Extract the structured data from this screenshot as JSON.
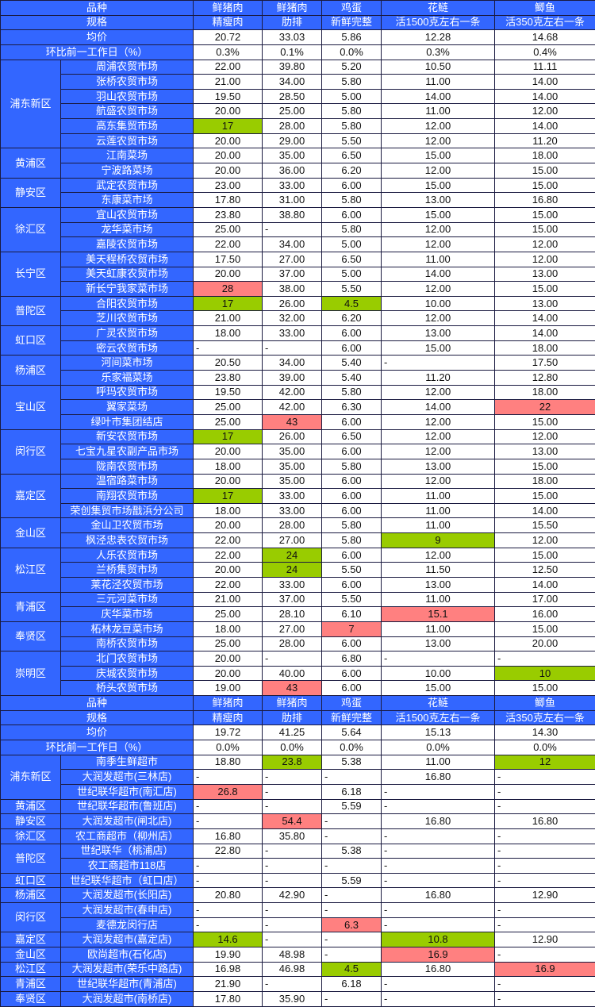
{
  "colors": {
    "header": "#3366ff",
    "low_highlight": "#99cc00",
    "high_highlight": "#ff8080"
  },
  "sections": [
    {
      "variety_label": "品种",
      "spec_label": "规格",
      "products": [
        "鲜猪肉",
        "鲜猪肉",
        "鸡蛋",
        "花鲢",
        "鲫鱼"
      ],
      "specs": [
        "精瘦肉",
        "肋排",
        "新鲜完整",
        "活1500克左右一条",
        "活350克左右一条"
      ],
      "avg_label": "均价",
      "avg": [
        "20.72",
        "33.03",
        "5.86",
        "12.28",
        "14.68"
      ],
      "change_label": "环比前一工作日（%）",
      "change": [
        "0.3%",
        "0.1%",
        "0.0%",
        "0.3%",
        "0.4%"
      ],
      "groups": [
        {
          "district": "浦东新区",
          "markets": [
            {
              "name": "周浦农贸市场",
              "prices": [
                "22.00",
                "39.80",
                "5.20",
                "10.50",
                "11.11"
              ]
            },
            {
              "name": "张桥农贸市场",
              "prices": [
                "21.00",
                "34.00",
                "5.80",
                "11.00",
                "14.00"
              ]
            },
            {
              "name": "羽山农贸市场",
              "prices": [
                "19.50",
                "28.50",
                "5.00",
                "14.00",
                "14.00"
              ]
            },
            {
              "name": "航盛农贸市场",
              "prices": [
                "20.00",
                "25.00",
                "5.80",
                "11.00",
                "12.00"
              ]
            },
            {
              "name": "高东集贸市场",
              "prices": [
                "17",
                "28.00",
                "5.80",
                "12.00",
                "14.00"
              ],
              "hl": {
                "0": "low"
              }
            },
            {
              "name": "云莲农贸市场",
              "prices": [
                "20.00",
                "29.00",
                "5.50",
                "12.00",
                "11.20"
              ]
            }
          ]
        },
        {
          "district": "黄浦区",
          "markets": [
            {
              "name": "江南菜场",
              "prices": [
                "20.00",
                "35.00",
                "6.50",
                "15.00",
                "18.00"
              ]
            },
            {
              "name": "宁波路菜场",
              "prices": [
                "20.00",
                "36.00",
                "6.20",
                "12.00",
                "15.00"
              ]
            }
          ]
        },
        {
          "district": "静安区",
          "markets": [
            {
              "name": "武定农贸市场",
              "prices": [
                "23.00",
                "33.00",
                "6.00",
                "15.00",
                "15.00"
              ]
            },
            {
              "name": "东康菜市场",
              "prices": [
                "17.80",
                "31.00",
                "5.80",
                "13.00",
                "16.80"
              ]
            }
          ]
        },
        {
          "district": "徐汇区",
          "markets": [
            {
              "name": "宜山农贸市场",
              "prices": [
                "23.80",
                "38.80",
                "6.00",
                "15.00",
                "15.00"
              ]
            },
            {
              "name": "龙华菜市场",
              "prices": [
                "25.00",
                "-",
                "5.80",
                "12.00",
                "15.00"
              ]
            },
            {
              "name": "嘉陵农贸市场",
              "prices": [
                "22.00",
                "34.00",
                "5.00",
                "12.00",
                "12.00"
              ]
            }
          ]
        },
        {
          "district": "长宁区",
          "markets": [
            {
              "name": "美天程桥农贸市场",
              "prices": [
                "17.50",
                "27.00",
                "6.50",
                "11.00",
                "12.00"
              ]
            },
            {
              "name": "美天虹康农贸市场",
              "prices": [
                "20.00",
                "37.00",
                "5.00",
                "14.00",
                "13.00"
              ]
            },
            {
              "name": "新长宁我家菜市场",
              "prices": [
                "28",
                "38.00",
                "5.50",
                "12.00",
                "15.00"
              ],
              "hl": {
                "0": "high"
              }
            }
          ]
        },
        {
          "district": "普陀区",
          "markets": [
            {
              "name": "合阳农贸市场",
              "prices": [
                "17",
                "26.00",
                "4.5",
                "10.00",
                "13.00"
              ],
              "hl": {
                "0": "low",
                "2": "low"
              }
            },
            {
              "name": "芝川农贸市场",
              "prices": [
                "21.00",
                "32.00",
                "6.20",
                "12.00",
                "14.00"
              ]
            }
          ]
        },
        {
          "district": "虹口区",
          "markets": [
            {
              "name": "广灵农贸市场",
              "prices": [
                "18.00",
                "33.00",
                "6.00",
                "13.00",
                "14.00"
              ]
            },
            {
              "name": "密云农贸市场",
              "prices": [
                "-",
                "-",
                "6.00",
                "15.00",
                "18.00"
              ]
            }
          ]
        },
        {
          "district": "杨浦区",
          "markets": [
            {
              "name": "河间菜市场",
              "prices": [
                "20.50",
                "34.00",
                "5.40",
                "-",
                "17.50"
              ]
            },
            {
              "name": "乐家福菜场",
              "prices": [
                "23.80",
                "39.00",
                "5.40",
                "11.20",
                "12.80"
              ]
            }
          ]
        },
        {
          "district": "宝山区",
          "markets": [
            {
              "name": "呼玛农贸市场",
              "prices": [
                "19.50",
                "42.00",
                "5.80",
                "12.00",
                "18.00"
              ]
            },
            {
              "name": "翼家菜场",
              "prices": [
                "25.00",
                "42.00",
                "6.30",
                "14.00",
                "22"
              ],
              "hl": {
                "4": "high"
              }
            },
            {
              "name": "绿叶市集团结店",
              "prices": [
                "25.00",
                "43",
                "6.00",
                "12.00",
                "15.00"
              ],
              "hl": {
                "1": "high"
              }
            }
          ]
        },
        {
          "district": "闵行区",
          "markets": [
            {
              "name": "新安农贸市场",
              "prices": [
                "17",
                "26.00",
                "6.50",
                "12.00",
                "12.00"
              ],
              "hl": {
                "0": "low"
              }
            },
            {
              "name": "七宝九星农副产品市场",
              "prices": [
                "20.00",
                "35.00",
                "6.00",
                "12.00",
                "13.00"
              ]
            },
            {
              "name": "陇南农贸市场",
              "prices": [
                "18.00",
                "35.00",
                "5.80",
                "13.00",
                "15.00"
              ]
            }
          ]
        },
        {
          "district": "嘉定区",
          "markets": [
            {
              "name": "温宿路菜市场",
              "prices": [
                "20.00",
                "35.00",
                "6.00",
                "12.00",
                "18.00"
              ]
            },
            {
              "name": "南翔农贸市场",
              "prices": [
                "17",
                "33.00",
                "6.00",
                "11.00",
                "15.00"
              ],
              "hl": {
                "0": "low"
              }
            },
            {
              "name": "荣创集贸市场戬浜分公司",
              "prices": [
                "18.00",
                "33.00",
                "6.00",
                "11.00",
                "14.00"
              ]
            }
          ]
        },
        {
          "district": "金山区",
          "markets": [
            {
              "name": "金山卫农贸市场",
              "prices": [
                "20.00",
                "28.00",
                "5.80",
                "11.00",
                "15.50"
              ]
            },
            {
              "name": "枫泾忠表农贸市场",
              "prices": [
                "22.00",
                "27.00",
                "5.80",
                "9",
                "12.00"
              ],
              "hl": {
                "3": "low"
              }
            }
          ]
        },
        {
          "district": "松江区",
          "markets": [
            {
              "name": "人乐农贸市场",
              "prices": [
                "22.00",
                "24",
                "6.00",
                "12.00",
                "15.00"
              ],
              "hl": {
                "1": "low"
              }
            },
            {
              "name": "兰桥集贸市场",
              "prices": [
                "20.00",
                "24",
                "5.50",
                "11.50",
                "12.50"
              ],
              "hl": {
                "1": "low"
              }
            },
            {
              "name": "莱花泾农贸市场",
              "prices": [
                "22.00",
                "33.00",
                "6.00",
                "13.00",
                "14.00"
              ]
            }
          ]
        },
        {
          "district": "青浦区",
          "markets": [
            {
              "name": "三元河菜市场",
              "prices": [
                "21.00",
                "37.00",
                "5.50",
                "11.00",
                "17.00"
              ]
            },
            {
              "name": "庆华菜市场",
              "prices": [
                "25.00",
                "28.10",
                "6.10",
                "15.1",
                "16.00"
              ],
              "hl": {
                "3": "high"
              }
            }
          ]
        },
        {
          "district": "奉贤区",
          "markets": [
            {
              "name": "柘林龙豆菜市场",
              "prices": [
                "18.00",
                "27.00",
                "7",
                "11.00",
                "15.00"
              ],
              "hl": {
                "2": "high"
              }
            },
            {
              "name": "南桥农贸市场",
              "prices": [
                "25.00",
                "28.00",
                "6.00",
                "13.00",
                "20.00"
              ]
            }
          ]
        },
        {
          "district": "崇明区",
          "markets": [
            {
              "name": "北门农贸市场",
              "prices": [
                "20.00",
                "-",
                "6.80",
                "-",
                "-"
              ]
            },
            {
              "name": "庆城农贸市场",
              "prices": [
                "20.00",
                "40.00",
                "6.00",
                "10.00",
                "10"
              ],
              "hl": {
                "4": "low"
              }
            },
            {
              "name": "桥头农贸市场",
              "prices": [
                "19.00",
                "43",
                "6.00",
                "15.00",
                "15.00"
              ],
              "hl": {
                "1": "high"
              }
            }
          ]
        }
      ]
    },
    {
      "variety_label": "品种",
      "spec_label": "规格",
      "products": [
        "鲜猪肉",
        "鲜猪肉",
        "鸡蛋",
        "花鲢",
        "鲫鱼"
      ],
      "specs": [
        "精瘦肉",
        "肋排",
        "新鲜完整",
        "活1500克左右一条",
        "活350克左右一条"
      ],
      "avg_label": "均价",
      "avg": [
        "19.72",
        "41.25",
        "5.64",
        "15.13",
        "14.30"
      ],
      "change_label": "环比前一工作日（%）",
      "change": [
        "0.0%",
        "0.0%",
        "0.0%",
        "0.0%",
        "0.0%"
      ],
      "groups": [
        {
          "district": "浦东新区",
          "markets": [
            {
              "name": "南季生鲜超市",
              "prices": [
                "18.80",
                "23.8",
                "5.38",
                "11.00",
                "12"
              ],
              "hl": {
                "1": "low",
                "4": "low"
              }
            },
            {
              "name": "大润发超市(三林店)",
              "prices": [
                "-",
                "-",
                "-",
                "16.80",
                "-"
              ]
            },
            {
              "name": "世纪联华超市(南汇店)",
              "prices": [
                "26.8",
                "-",
                "6.18",
                "-",
                "-"
              ],
              "hl": {
                "0": "high"
              }
            }
          ]
        },
        {
          "district": "黄浦区",
          "markets": [
            {
              "name": "世纪联华超市(鲁班店)",
              "prices": [
                "-",
                "-",
                "5.59",
                "-",
                "-"
              ]
            }
          ]
        },
        {
          "district": "静安区",
          "markets": [
            {
              "name": "大润发超市(闸北店)",
              "prices": [
                "-",
                "54.4",
                "-",
                "16.80",
                "16.80"
              ],
              "hl": {
                "1": "high"
              }
            }
          ]
        },
        {
          "district": "徐汇区",
          "markets": [
            {
              "name": "农工商超市（柳州店）",
              "prices": [
                "16.80",
                "35.80",
                "-",
                "-",
                "-"
              ]
            }
          ]
        },
        {
          "district": "普陀区",
          "markets": [
            {
              "name": "世纪联华（桃浦店）",
              "prices": [
                "22.80",
                "-",
                "5.38",
                "-",
                "-"
              ]
            },
            {
              "name": "农工商超市118店",
              "prices": [
                "-",
                "-",
                "-",
                "-",
                "-"
              ]
            }
          ]
        },
        {
          "district": "虹口区",
          "markets": [
            {
              "name": "世纪联华超市（虹口店）",
              "prices": [
                "-",
                "-",
                "5.59",
                "-",
                "-"
              ]
            }
          ]
        },
        {
          "district": "杨浦区",
          "markets": [
            {
              "name": "大润发超市(长阳店)",
              "prices": [
                "20.80",
                "42.90",
                "-",
                "16.80",
                "12.90"
              ]
            }
          ]
        },
        {
          "district": "闵行区",
          "markets": [
            {
              "name": "大润发超市(春申店)",
              "prices": [
                "-",
                "-",
                "-",
                "-",
                "-"
              ]
            },
            {
              "name": "麦德龙闵行店",
              "prices": [
                "-",
                "-",
                "6.3",
                "-",
                "-"
              ],
              "hl": {
                "2": "high"
              }
            }
          ]
        },
        {
          "district": "嘉定区",
          "markets": [
            {
              "name": "大润发超市(嘉定店)",
              "prices": [
                "14.6",
                "-",
                "-",
                "10.8",
                "12.90"
              ],
              "hl": {
                "0": "low",
                "3": "low"
              }
            }
          ]
        },
        {
          "district": "金山区",
          "markets": [
            {
              "name": "欧尚超市(石化店)",
              "prices": [
                "19.90",
                "48.98",
                "-",
                "16.9",
                "-"
              ],
              "hl": {
                "3": "high"
              }
            }
          ]
        },
        {
          "district": "松江区",
          "markets": [
            {
              "name": "大润发超市(荣乐中路店)",
              "prices": [
                "16.98",
                "46.98",
                "4.5",
                "16.80",
                "16.9"
              ],
              "hl": {
                "2": "low",
                "4": "high"
              }
            }
          ]
        },
        {
          "district": "青浦区",
          "markets": [
            {
              "name": "世纪联华超市(青浦店)",
              "prices": [
                "21.90",
                "-",
                "6.18",
                "-",
                "-"
              ]
            }
          ]
        },
        {
          "district": "奉贤区",
          "markets": [
            {
              "name": "大润发超市(南桥店)",
              "prices": [
                "17.80",
                "35.90",
                "-",
                "-",
                "-"
              ]
            }
          ]
        }
      ]
    }
  ]
}
